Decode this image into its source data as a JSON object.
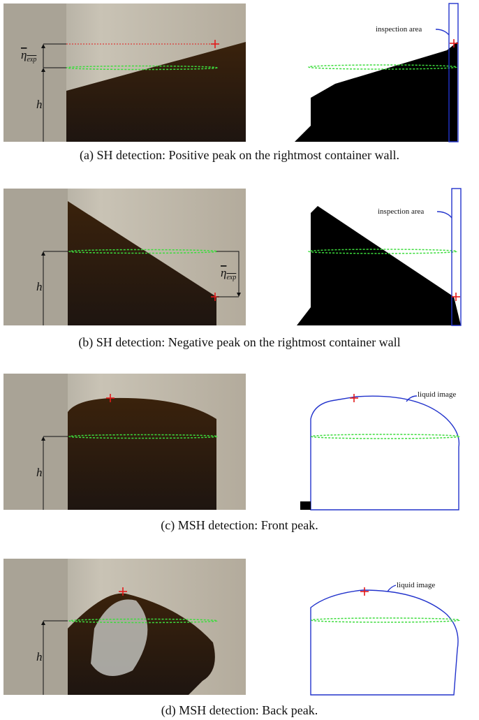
{
  "panels": [
    {
      "caption": "(a) SH detection: Positive peak on the rightmost container wall.",
      "eta": "η",
      "eta_sub": "exp",
      "h": "h",
      "annotation": "inspection area"
    },
    {
      "caption": "(b) SH detection: Negative peak on the rightmost container wall",
      "eta": "η",
      "eta_sub": "exp",
      "h": "h",
      "annotation": "inspection area"
    },
    {
      "caption": "(c) MSH detection: Front peak.",
      "h": "h",
      "annotation": "liquid image"
    },
    {
      "caption": "(d) MSH detection: Back peak.",
      "h": "h",
      "annotation": "liquid image"
    }
  ]
}
